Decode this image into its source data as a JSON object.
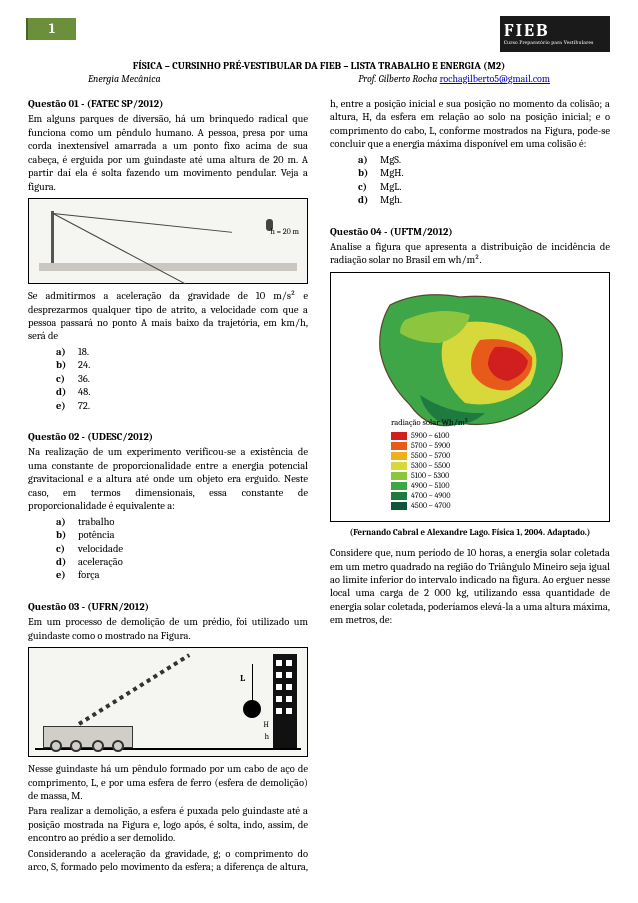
{
  "page_number": "1",
  "logo": {
    "brand": "FIEB",
    "sub": "Curso Preparatório para Vestibulares"
  },
  "header": {
    "title": "FÍSICA – CURSINHO PRÉ-VESTIBULAR DA FIEB – LISTA TRABALHO E ENERGIA (M2)",
    "left": "Energia Mecânica",
    "prof": "Prof. Gilberto Rocha ",
    "email": "rochagilberto5@gmail.com"
  },
  "q1": {
    "head": "Questão 01 - (FATEC SP/2012)",
    "body1": "Em alguns parques de diversão, há um brinquedo radical que funciona como um pêndulo humano. A pessoa, presa por uma corda inextensível amarrada a um ponto fixo acima de sua cabeça, é erguida por um guindaste até uma altura de 20 m. A partir daí ela é solta fazendo um movimento pendular. Veja a figura.",
    "h20": "h = 20 m",
    "body2": "Se admitirmos a aceleração da gravidade de 10 m/s² e desprezarmos qualquer tipo de atrito, a velocidade com que a pessoa passará no ponto A mais baixo da trajetória, em km/h, será de",
    "opts": [
      "18.",
      "24.",
      "36.",
      "48.",
      "72."
    ]
  },
  "q2": {
    "head": "Questão 02 - (UDESC/2012)",
    "body": "Na realização de um experimento verificou-se a existência de uma constante de proporcionalidade entre a energia potencial gravitacional e a altura até onde um objeto era erguido. Neste caso, em termos dimensionais, essa constante de proporcionalidade é equivalente a:",
    "opts": [
      "trabalho",
      "potência",
      "velocidade",
      "aceleração",
      "força"
    ]
  },
  "q3": {
    "head": "Questão 03 - (UFRN/2012)",
    "body1": "Em um processo de demolição de um prédio, foi utilizado um guindaste como o mostrado na Figura.",
    "labels": {
      "L": "L",
      "H": "H",
      "h": "h"
    },
    "body2a": "Nesse guindaste há um pêndulo formado por um cabo de aço de comprimento, L, e por uma esfera de ferro (esfera de demolição) de massa, M.",
    "body2b": "Para realizar a demolição, a esfera é puxada pelo guindaste até a posição mostrada na Figura e, logo após, é solta, indo, assim, de encontro ao prédio a ser demolido.",
    "body2c": "Considerando a aceleração da gravidade, g; o comprimento do arco, S, formado pelo movimento da esfera; a diferença de altura, h, entre a posição inicial e sua posição no momento da colisão; a altura, H, da esfera em relação ao solo na posição inicial; e o comprimento do cabo, L, conforme mostrados na Figura, pode-se concluir que a energia máxima disponível em uma colisão é:",
    "opts": [
      "MgS.",
      "MgH.",
      "MgL.",
      "Mgh."
    ]
  },
  "q4": {
    "head": "Questão 04 - (UFTM/2012)",
    "body1": "Analise a figura que apresenta a distribuição de incidência de radiação solar no Brasil em wh/m².",
    "legend_title": "radiação solar\nWh/m²",
    "legend": [
      {
        "c": "#d11f1f",
        "t": "5900 – 6100"
      },
      {
        "c": "#e85a1a",
        "t": "5700 – 5900"
      },
      {
        "c": "#f0b01e",
        "t": "5500 – 5700"
      },
      {
        "c": "#d7d93a",
        "t": "5300 – 5500"
      },
      {
        "c": "#8cc63f",
        "t": "5100 – 5300"
      },
      {
        "c": "#3fa648",
        "t": "4900 – 5100"
      },
      {
        "c": "#1f7a3f",
        "t": "4700 – 4900"
      },
      {
        "c": "#115536",
        "t": "4500 – 4700"
      }
    ],
    "caption": "(Fernando Cabral e Alexandre Lago. Física 1, 2004. Adaptado.)",
    "body2": "Considere que, num período de 10 horas, a energia solar coletada em um metro quadrado na região do Triângulo Mineiro seja igual ao limite inferior do intervalo indicado na figura. Ao erguer nesse local uma carga de 2 000 kg, utilizando essa quantidade de energia solar coletada, poderíamos elevá-la a uma altura máxima, em metros, de:"
  },
  "opt_letters": [
    "a)",
    "b)",
    "c)",
    "d)",
    "e)"
  ]
}
